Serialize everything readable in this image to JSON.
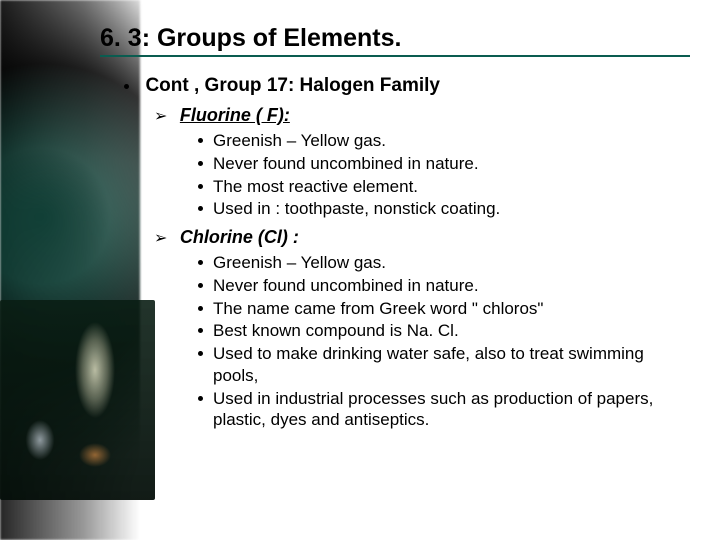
{
  "title": "6. 3: Groups of Elements.",
  "subtitle": "Cont , Group 17: Halogen Family",
  "sections": [
    {
      "heading": "Fluorine ( F):",
      "underline": true,
      "items": [
        "Greenish – Yellow gas.",
        "Never found uncombined in nature.",
        "The most reactive element.",
        "Used in : toothpaste, nonstick coating."
      ]
    },
    {
      "heading": "Chlorine (Cl) :",
      "underline": false,
      "items": [
        "Greenish – Yellow gas.",
        "Never found uncombined in nature.",
        "The name came from Greek word \" chloros\"",
        "Best known compound is Na. Cl.",
        "Used to make drinking water safe, also to treat swimming pools,",
        "Used in industrial processes  such as production of papers, plastic, dyes and antiseptics."
      ]
    }
  ]
}
